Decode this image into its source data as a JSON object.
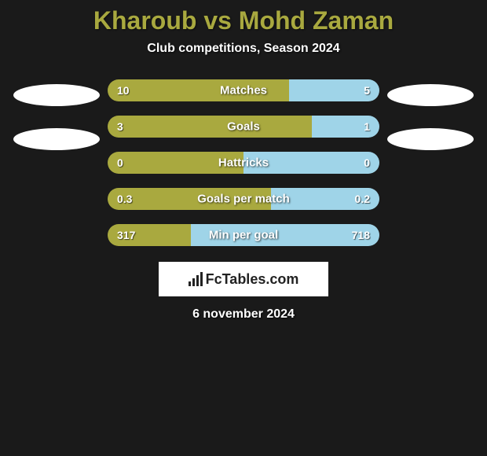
{
  "title": "Kharoub vs Mohd Zaman",
  "subtitle": "Club competitions, Season 2024",
  "date": "6 november 2024",
  "brand": "FcTables.com",
  "background_color": "#1a1a1a",
  "title_color": "#a9a93f",
  "text_color": "#ffffff",
  "colors": {
    "left": "#a9a93f",
    "right": "#9fd4e8"
  },
  "rows": [
    {
      "label": "Matches",
      "left_value": "10",
      "right_value": "5",
      "left_pct": 66.7,
      "right_pct": 33.3
    },
    {
      "label": "Goals",
      "left_value": "3",
      "right_value": "1",
      "left_pct": 75,
      "right_pct": 25
    },
    {
      "label": "Hattricks",
      "left_value": "0",
      "right_value": "0",
      "left_pct": 50,
      "right_pct": 50
    },
    {
      "label": "Goals per match",
      "left_value": "0.3",
      "right_value": "0.2",
      "left_pct": 60,
      "right_pct": 40
    },
    {
      "label": "Min per goal",
      "left_value": "317",
      "right_value": "718",
      "left_pct": 30.6,
      "right_pct": 69.4
    }
  ],
  "brand_icon_heights": [
    6,
    10,
    14,
    18
  ]
}
